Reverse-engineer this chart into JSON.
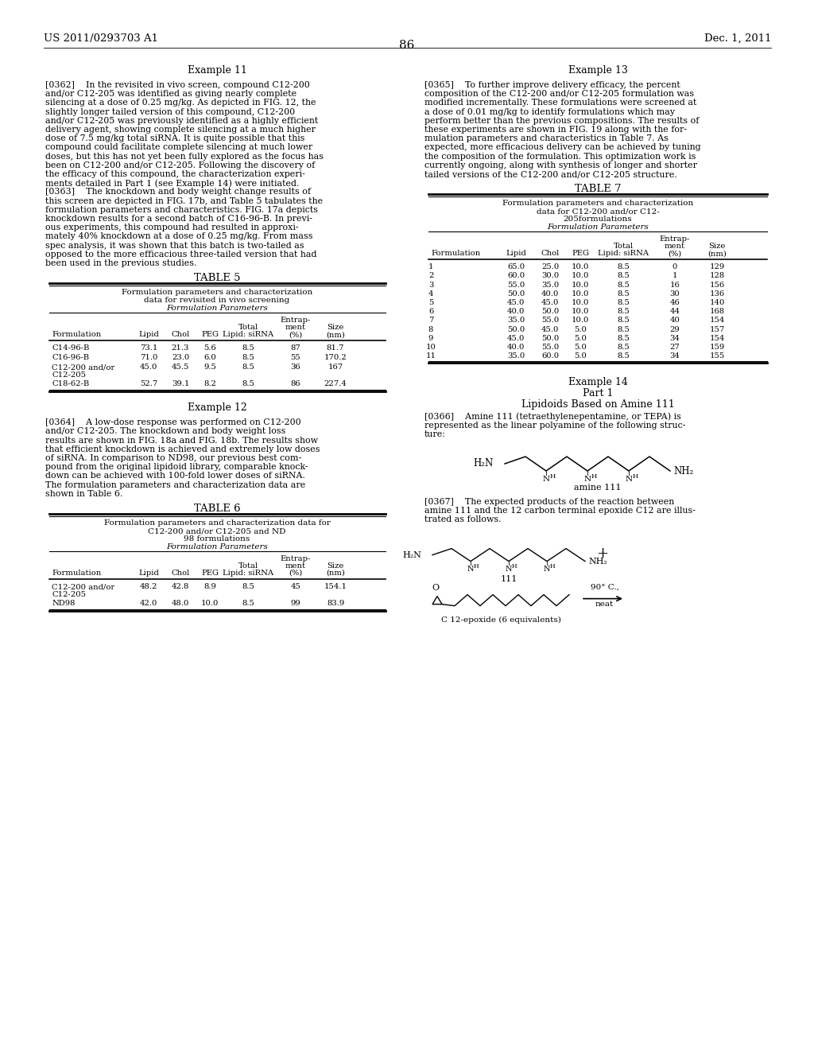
{
  "page_number": "86",
  "patent_number": "US 2011/0293703 A1",
  "patent_date": "Dec. 1, 2011",
  "bg": "#ffffff",
  "table5_title": "TABLE 5",
  "table5_sub1": "Formulation parameters and characterization",
  "table5_sub2": "data for revisited in vivo screening",
  "table5_sub3": "Formulation Parameters",
  "table5_rows": [
    [
      "C14-96-B",
      "73.1",
      "21.3",
      "5.6",
      "8.5",
      "87",
      "81.7"
    ],
    [
      "C16-96-B",
      "71.0",
      "23.0",
      "6.0",
      "8.5",
      "55",
      "170.2"
    ],
    [
      "C12-200 and/or\nC12-205",
      "45.0",
      "45.5",
      "9.5",
      "8.5",
      "36",
      "167"
    ],
    [
      "C18-62-B",
      "52.7",
      "39.1",
      "8.2",
      "8.5",
      "86",
      "227.4"
    ]
  ],
  "table6_title": "TABLE 6",
  "table6_sub1": "Formulation parameters and characterization data for",
  "table6_sub2": "C12-200 and/or C12-205 and ND",
  "table6_sub3": "98 formulations",
  "table6_sub4": "Formulation Parameters",
  "table6_rows": [
    [
      "C12-200 and/or\nC12-205",
      "48.2",
      "42.8",
      "8.9",
      "8.5",
      "45",
      "154.1"
    ],
    [
      "ND98",
      "42.0",
      "48.0",
      "10.0",
      "8.5",
      "99",
      "83.9"
    ]
  ],
  "table7_title": "TABLE 7",
  "table7_sub1": "Formulation parameters and characterization",
  "table7_sub2": "data for C12-200 and/or C12-",
  "table7_sub3": "205formulations",
  "table7_sub4": "Formulation Parameters",
  "table7_rows": [
    [
      "1",
      "65.0",
      "25.0",
      "10.0",
      "8.5",
      "0",
      "129"
    ],
    [
      "2",
      "60.0",
      "30.0",
      "10.0",
      "8.5",
      "1",
      "128"
    ],
    [
      "3",
      "55.0",
      "35.0",
      "10.0",
      "8.5",
      "16",
      "156"
    ],
    [
      "4",
      "50.0",
      "40.0",
      "10.0",
      "8.5",
      "30",
      "136"
    ],
    [
      "5",
      "45.0",
      "45.0",
      "10.0",
      "8.5",
      "46",
      "140"
    ],
    [
      "6",
      "40.0",
      "50.0",
      "10.0",
      "8.5",
      "44",
      "168"
    ],
    [
      "7",
      "35.0",
      "55.0",
      "10.0",
      "8.5",
      "40",
      "154"
    ],
    [
      "8",
      "50.0",
      "45.0",
      "5.0",
      "8.5",
      "29",
      "157"
    ],
    [
      "9",
      "45.0",
      "50.0",
      "5.0",
      "8.5",
      "34",
      "154"
    ],
    [
      "10",
      "40.0",
      "55.0",
      "5.0",
      "8.5",
      "27",
      "159"
    ],
    [
      "11",
      "35.0",
      "60.0",
      "5.0",
      "8.5",
      "34",
      "155"
    ]
  ],
  "left_col_lines": [
    [
      "Example 11",
      "center",
      9,
      "normal"
    ],
    [
      "",
      "left",
      8,
      "normal"
    ],
    [
      "[0362]    In the revisited in vivo screen, compound C12-200",
      "left",
      8,
      "normal"
    ],
    [
      "and/or C12-205 was identified as giving nearly complete",
      "left",
      8,
      "normal"
    ],
    [
      "silencing at a dose of 0.25 mg/kg. As depicted in FIG. 12, the",
      "left",
      8,
      "normal"
    ],
    [
      "slightly longer tailed version of this compound, C12-200",
      "left",
      8,
      "normal"
    ],
    [
      "and/or C12-205 was previously identified as a highly efficient",
      "left",
      8,
      "normal"
    ],
    [
      "delivery agent, showing complete silencing at a much higher",
      "left",
      8,
      "normal"
    ],
    [
      "dose of 7.5 mg/kg total siRNA. It is quite possible that this",
      "left",
      8,
      "normal"
    ],
    [
      "compound could facilitate complete silencing at much lower",
      "left",
      8,
      "normal"
    ],
    [
      "doses, but this has not yet been fully explored as the focus has",
      "left",
      8,
      "normal"
    ],
    [
      "been on C12-200 and/or C12-205. Following the discovery of",
      "left",
      8,
      "normal"
    ],
    [
      "the efficacy of this compound, the characterization experi-",
      "left",
      8,
      "normal"
    ],
    [
      "ments detailed in Part 1 (see Example 14) were initiated.",
      "left",
      8,
      "normal"
    ],
    [
      "[0363]    The knockdown and body weight change results of",
      "left",
      8,
      "normal"
    ],
    [
      "this screen are depicted in FIG. 17b, and Table 5 tabulates the",
      "left",
      8,
      "normal"
    ],
    [
      "formulation parameters and characteristics. FIG. 17a depicts",
      "left",
      8,
      "normal"
    ],
    [
      "knockdown results for a second batch of C16-96-B. In previ-",
      "left",
      8,
      "normal"
    ],
    [
      "ous experiments, this compound had resulted in approxi-",
      "left",
      8,
      "normal"
    ],
    [
      "mately 40% knockdown at a dose of 0.25 mg/kg. From mass",
      "left",
      8,
      "normal"
    ],
    [
      "spec analysis, it was shown that this batch is two-tailed as",
      "left",
      8,
      "normal"
    ],
    [
      "opposed to the more efficacious three-tailed version that had",
      "left",
      8,
      "normal"
    ],
    [
      "been used in the previous studies.",
      "left",
      8,
      "normal"
    ]
  ],
  "right_col_lines": [
    [
      "Example 13",
      "center",
      9,
      "normal"
    ],
    [
      "",
      "left",
      8,
      "normal"
    ],
    [
      "[0365]    To further improve delivery efficacy, the percent",
      "left",
      8,
      "normal"
    ],
    [
      "composition of the C12-200 and/or C12-205 formulation was",
      "left",
      8,
      "normal"
    ],
    [
      "modified incrementally. These formulations were screened at",
      "left",
      8,
      "normal"
    ],
    [
      "a dose of 0.01 mg/kg to identify formulations which may",
      "left",
      8,
      "normal"
    ],
    [
      "perform better than the previous compositions. The results of",
      "left",
      8,
      "normal"
    ],
    [
      "these experiments are shown in FIG. 19 along with the for-",
      "left",
      8,
      "normal"
    ],
    [
      "mulation parameters and characteristics in Table 7. As",
      "left",
      8,
      "normal"
    ],
    [
      "expected, more efficacious delivery can be achieved by tuning",
      "left",
      8,
      "normal"
    ],
    [
      "the composition of the formulation. This optimization work is",
      "left",
      8,
      "normal"
    ],
    [
      "currently ongoing, along with synthesis of longer and shorter",
      "left",
      8,
      "normal"
    ],
    [
      "tailed versions of the C12-200 and/or C12-205 structure.",
      "left",
      8,
      "normal"
    ]
  ]
}
